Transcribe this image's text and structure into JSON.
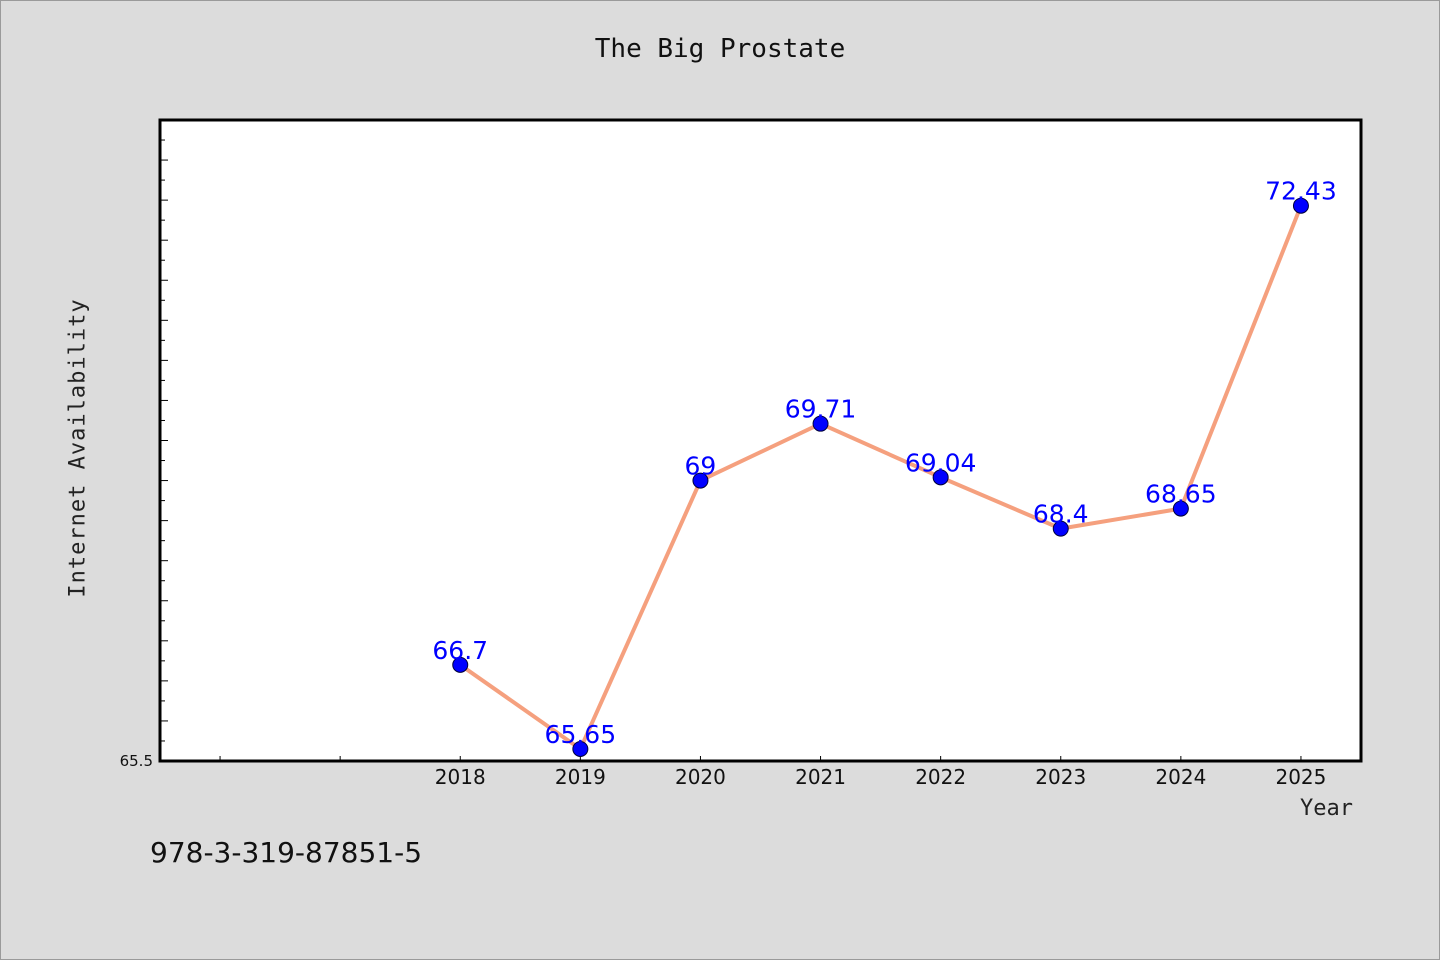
{
  "title": "The Big Prostate",
  "footer_text": "978-3-319-87851-5",
  "colors": {
    "line": "#f5a07e",
    "marker": "#0000ff",
    "label": "#0000ff",
    "plot_bg": "#ffffff",
    "page_bg": "#dcdcdc"
  },
  "chart_data": {
    "type": "line",
    "title": "The Big Prostate",
    "xlabel": "Year",
    "ylabel": "Internet Availability",
    "categories": [
      "2018",
      "2019",
      "2020",
      "2021",
      "2022",
      "2023",
      "2024",
      "2025"
    ],
    "values": [
      66.7,
      65.65,
      69,
      69.71,
      69.04,
      68.4,
      68.65,
      72.43
    ],
    "data_labels": [
      "66.7",
      "65.65",
      "69",
      "69.71",
      "69.04",
      "68.4",
      "68.65",
      "72.43"
    ],
    "x_range": [
      2015.5,
      2025.5
    ],
    "ylim": [
      65.5,
      73.5
    ],
    "y_tick_labels": [
      "65.5"
    ],
    "grid": false,
    "legend": "none"
  }
}
